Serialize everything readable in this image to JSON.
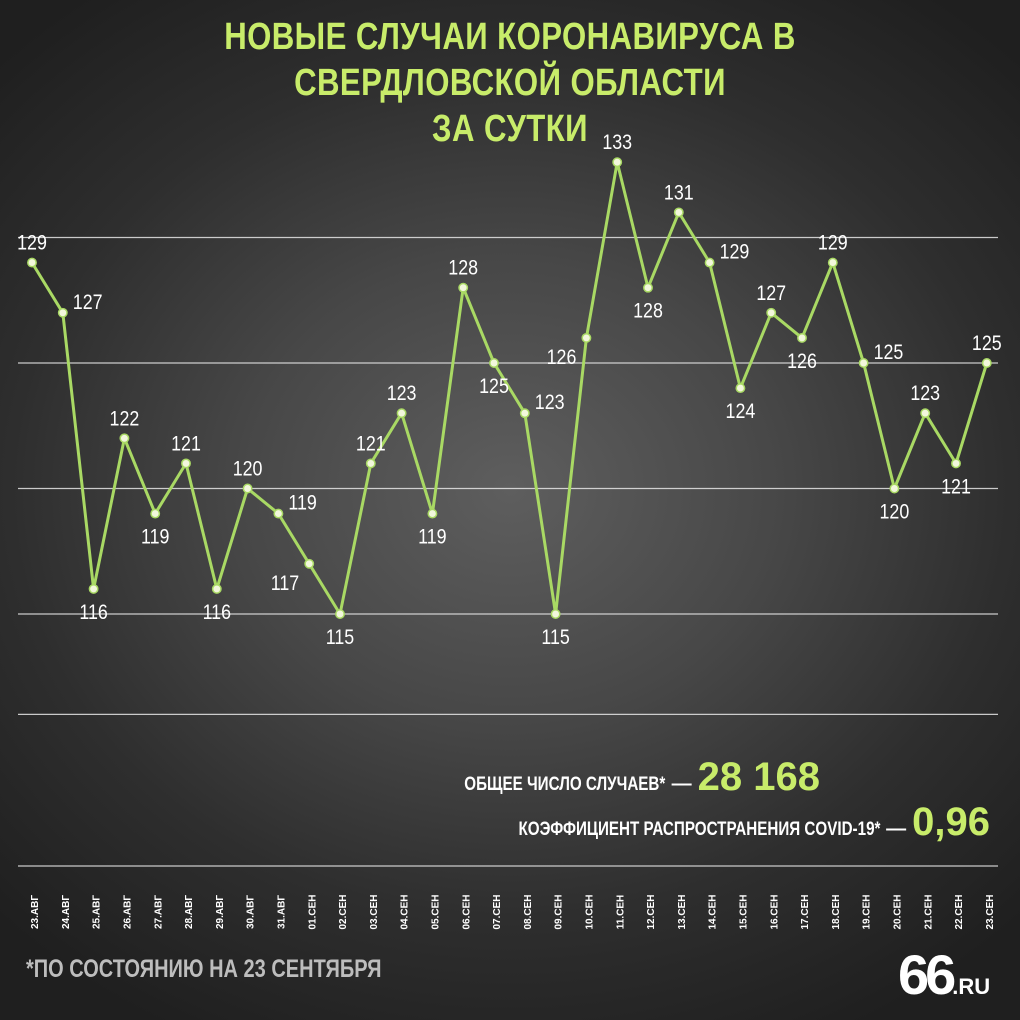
{
  "title": {
    "line1": "НОВЫЕ СЛУЧАИ КОРОНАВИРУСА В СВЕРДЛОВСКОЙ ОБЛАСТИ",
    "line2": "ЗА СУТКИ"
  },
  "stats": {
    "total_label": "ОБЩЕЕ ЧИСЛО СЛУЧАЕВ*",
    "total_value": "28 168",
    "coef_label": "КОЭФФИЦИЕНТ РАСПРОСТРАНЕНИЯ COVID-19*",
    "coef_value": "0,96",
    "dash": "—"
  },
  "footnote": "*ПО СОСТОЯНИЮ НА 23 СЕНТЯБРЯ",
  "logo": {
    "number": "66",
    "domain": ".RU"
  },
  "colors": {
    "accent": "#c8ec6a",
    "line": "#a9d964",
    "grid": "#e6e6e6",
    "text": "#ffffff"
  },
  "chart_data": {
    "type": "line",
    "categories": [
      "23.АВГ",
      "24.АВГ",
      "25.АВГ",
      "26.АВГ",
      "27.АВГ",
      "28.АВГ",
      "29.АВГ",
      "30.АВГ",
      "31.АВГ",
      "01.СЕН",
      "02.СЕН",
      "03.СЕН",
      "04.СЕН",
      "05.СЕН",
      "06.СЕН",
      "07.СЕН",
      "08.СЕН",
      "09.СЕН",
      "10.СЕН",
      "11.СЕН",
      "12.СЕН",
      "13.СЕН",
      "14.СЕН",
      "15.СЕН",
      "16.СЕН",
      "17.СЕН",
      "18.СЕН",
      "19.СЕН",
      "20.СЕН",
      "21.СЕН",
      "22.СЕН",
      "23.СЕН"
    ],
    "values": [
      129,
      127,
      116,
      122,
      119,
      121,
      116,
      120,
      119,
      117,
      115,
      121,
      123,
      119,
      128,
      125,
      123,
      115,
      126,
      133,
      128,
      131,
      129,
      124,
      127,
      126,
      129,
      125,
      120,
      123,
      121,
      125
    ],
    "label_position": [
      "above",
      "right",
      "below",
      "above",
      "below",
      "above",
      "below",
      "above",
      "right",
      "left",
      "below",
      "above",
      "above",
      "below",
      "above",
      "below",
      "right",
      "below",
      "left",
      "above",
      "below",
      "above",
      "right",
      "below",
      "above",
      "below",
      "above",
      "right",
      "below",
      "above",
      "below",
      "above"
    ],
    "ylim": [
      111,
      135
    ],
    "grid_values": [
      115,
      120,
      125,
      130,
      111
    ],
    "grid": true
  }
}
